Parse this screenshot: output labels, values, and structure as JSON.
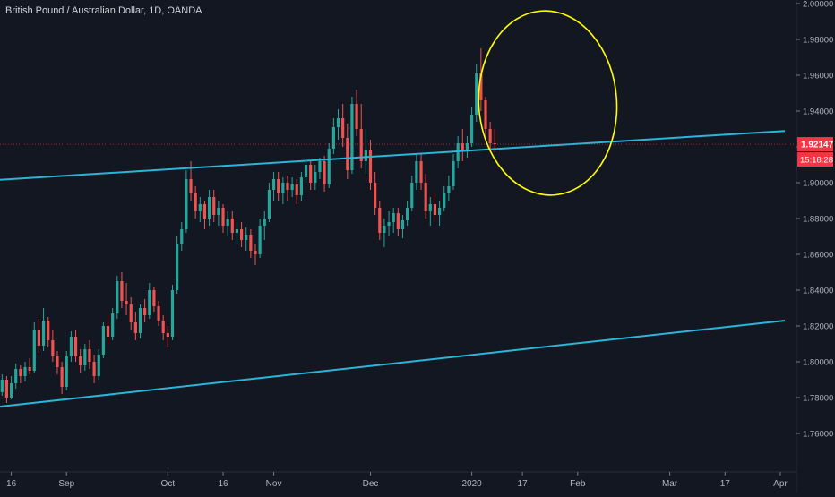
{
  "chart_data": {
    "type": "candlestick",
    "title": "British Pound / Australian Dollar, 1D, OANDA",
    "y_ticks": [
      "2.00000",
      "1.98000",
      "1.96000",
      "1.94000",
      "1.92000",
      "1.90000",
      "1.88000",
      "1.86000",
      "1.84000",
      "1.82000",
      "1.80000",
      "1.78000",
      "1.76000"
    ],
    "ylim": [
      1.75,
      2.0
    ],
    "x_ticks": [
      {
        "label": "16",
        "index": 4
      },
      {
        "label": "Sep",
        "index": 16
      },
      {
        "label": "Oct",
        "index": 38
      },
      {
        "label": "16",
        "index": 50
      },
      {
        "label": "Nov",
        "index": 61
      },
      {
        "label": "Dec",
        "index": 82
      },
      {
        "label": "2020",
        "index": 104
      },
      {
        "label": "17",
        "index": 115
      },
      {
        "label": "Feb",
        "index": 127
      },
      {
        "label": "Mar",
        "index": 147
      },
      {
        "label": "17",
        "index": 159
      },
      {
        "label": "Apr",
        "index": 171
      }
    ],
    "current_price": {
      "label": "1.92147",
      "value": 1.92147,
      "color": "#f23645"
    },
    "countdown": {
      "label": "15:18:28",
      "color": "#f23645"
    },
    "colors": {
      "up": "#26a69a",
      "down": "#ef5350",
      "channel": "#29b6d8",
      "annotation": "#ffff00",
      "background": "#131722",
      "text": "#b2b5be"
    },
    "channel_lines": [
      {
        "start_index": -1,
        "start_value": 1.9012,
        "end_index": 172,
        "end_value": 1.9289
      },
      {
        "start_index": -1,
        "start_value": 1.7743,
        "end_index": 172,
        "end_value": 1.823
      }
    ],
    "annotation_ellipse": {
      "center_index": 120.5,
      "center_value": 1.9445,
      "radius_bars": 30,
      "radius_value": 0.0515
    },
    "candles": [
      [
        1.782,
        1.786,
        1.774,
        1.779
      ],
      [
        1.779,
        1.787,
        1.776,
        1.783
      ],
      [
        1.783,
        1.793,
        1.781,
        1.79
      ],
      [
        1.79,
        1.792,
        1.777,
        1.78
      ],
      [
        1.78,
        1.792,
        1.779,
        1.788
      ],
      [
        1.788,
        1.799,
        1.785,
        1.796
      ],
      [
        1.796,
        1.798,
        1.788,
        1.792
      ],
      [
        1.792,
        1.8,
        1.789,
        1.797
      ],
      [
        1.797,
        1.802,
        1.793,
        1.795
      ],
      [
        1.795,
        1.822,
        1.794,
        1.818
      ],
      [
        1.818,
        1.824,
        1.805,
        1.809
      ],
      [
        1.809,
        1.83,
        1.806,
        1.823
      ],
      [
        1.823,
        1.825,
        1.808,
        1.812
      ],
      [
        1.812,
        1.818,
        1.8,
        1.803
      ],
      [
        1.803,
        1.806,
        1.793,
        1.797
      ],
      [
        1.797,
        1.8,
        1.782,
        1.786
      ],
      [
        1.786,
        1.806,
        1.784,
        1.803
      ],
      [
        1.803,
        1.817,
        1.8,
        1.814
      ],
      [
        1.814,
        1.818,
        1.8,
        1.803
      ],
      [
        1.803,
        1.807,
        1.794,
        1.798
      ],
      [
        1.798,
        1.81,
        1.795,
        1.807
      ],
      [
        1.807,
        1.812,
        1.796,
        1.8
      ],
      [
        1.8,
        1.804,
        1.788,
        1.792
      ],
      [
        1.792,
        1.807,
        1.79,
        1.804
      ],
      [
        1.804,
        1.822,
        1.802,
        1.82
      ],
      [
        1.82,
        1.826,
        1.81,
        1.814
      ],
      [
        1.814,
        1.83,
        1.812,
        1.827
      ],
      [
        1.827,
        1.848,
        1.824,
        1.845
      ],
      [
        1.845,
        1.85,
        1.83,
        1.834
      ],
      [
        1.834,
        1.844,
        1.826,
        1.832
      ],
      [
        1.832,
        1.836,
        1.818,
        1.822
      ],
      [
        1.822,
        1.828,
        1.812,
        1.816
      ],
      [
        1.816,
        1.832,
        1.813,
        1.83
      ],
      [
        1.83,
        1.835,
        1.822,
        1.826
      ],
      [
        1.826,
        1.844,
        1.824,
        1.84
      ],
      [
        1.84,
        1.842,
        1.828,
        1.831
      ],
      [
        1.831,
        1.834,
        1.82,
        1.823
      ],
      [
        1.823,
        1.826,
        1.812,
        1.816
      ],
      [
        1.816,
        1.82,
        1.808,
        1.814
      ],
      [
        1.814,
        1.843,
        1.812,
        1.84
      ],
      [
        1.84,
        1.87,
        1.838,
        1.866
      ],
      [
        1.866,
        1.878,
        1.862,
        1.874
      ],
      [
        1.874,
        1.907,
        1.872,
        1.902
      ],
      [
        1.902,
        1.912,
        1.89,
        1.894
      ],
      [
        1.894,
        1.898,
        1.88,
        1.884
      ],
      [
        1.884,
        1.892,
        1.878,
        1.888
      ],
      [
        1.888,
        1.89,
        1.874,
        1.88
      ],
      [
        1.88,
        1.896,
        1.876,
        1.892
      ],
      [
        1.892,
        1.896,
        1.878,
        1.882
      ],
      [
        1.882,
        1.89,
        1.876,
        1.886
      ],
      [
        1.886,
        1.888,
        1.872,
        1.876
      ],
      [
        1.876,
        1.884,
        1.87,
        1.88
      ],
      [
        1.88,
        1.884,
        1.868,
        1.872
      ],
      [
        1.872,
        1.878,
        1.866,
        1.874
      ],
      [
        1.874,
        1.878,
        1.864,
        1.868
      ],
      [
        1.868,
        1.875,
        1.862,
        1.871
      ],
      [
        1.871,
        1.874,
        1.858,
        1.862
      ],
      [
        1.862,
        1.866,
        1.854,
        1.86
      ],
      [
        1.86,
        1.88,
        1.858,
        1.876
      ],
      [
        1.876,
        1.884,
        1.868,
        1.88
      ],
      [
        1.88,
        1.9,
        1.878,
        1.896
      ],
      [
        1.896,
        1.906,
        1.89,
        1.902
      ],
      [
        1.902,
        1.906,
        1.89,
        1.894
      ],
      [
        1.894,
        1.903,
        1.888,
        1.9
      ],
      [
        1.9,
        1.904,
        1.89,
        1.896
      ],
      [
        1.896,
        1.903,
        1.892,
        1.899
      ],
      [
        1.899,
        1.902,
        1.888,
        1.893
      ],
      [
        1.893,
        1.906,
        1.89,
        1.903
      ],
      [
        1.903,
        1.914,
        1.9,
        1.91
      ],
      [
        1.91,
        1.912,
        1.896,
        1.9
      ],
      [
        1.9,
        1.91,
        1.896,
        1.906
      ],
      [
        1.906,
        1.914,
        1.902,
        1.912
      ],
      [
        1.912,
        1.915,
        1.895,
        1.899
      ],
      [
        1.899,
        1.922,
        1.897,
        1.919
      ],
      [
        1.919,
        1.936,
        1.916,
        1.931
      ],
      [
        1.931,
        1.941,
        1.924,
        1.936
      ],
      [
        1.936,
        1.944,
        1.92,
        1.925
      ],
      [
        1.925,
        1.933,
        1.902,
        1.907
      ],
      [
        1.907,
        1.948,
        1.905,
        1.944
      ],
      [
        1.944,
        1.952,
        1.926,
        1.93
      ],
      [
        1.93,
        1.944,
        1.908,
        1.912
      ],
      [
        1.912,
        1.93,
        1.905,
        1.918
      ],
      [
        1.918,
        1.924,
        1.896,
        1.9
      ],
      [
        1.9,
        1.906,
        1.882,
        1.886
      ],
      [
        1.886,
        1.89,
        1.868,
        1.872
      ],
      [
        1.872,
        1.88,
        1.864,
        1.876
      ],
      [
        1.876,
        1.884,
        1.87,
        1.878
      ],
      [
        1.878,
        1.886,
        1.872,
        1.883
      ],
      [
        1.883,
        1.886,
        1.87,
        1.874
      ],
      [
        1.874,
        1.882,
        1.869,
        1.879
      ],
      [
        1.879,
        1.89,
        1.876,
        1.886
      ],
      [
        1.886,
        1.904,
        1.884,
        1.9
      ],
      [
        1.9,
        1.916,
        1.896,
        1.912
      ],
      [
        1.912,
        1.916,
        1.896,
        1.9
      ],
      [
        1.9,
        1.905,
        1.88,
        1.884
      ],
      [
        1.884,
        1.892,
        1.876,
        1.888
      ],
      [
        1.888,
        1.894,
        1.878,
        1.882
      ],
      [
        1.882,
        1.89,
        1.876,
        1.886
      ],
      [
        1.886,
        1.898,
        1.884,
        1.894
      ],
      [
        1.894,
        1.904,
        1.89,
        1.898
      ],
      [
        1.898,
        1.916,
        1.896,
        1.912
      ],
      [
        1.912,
        1.926,
        1.908,
        1.922
      ],
      [
        1.922,
        1.93,
        1.912,
        1.918
      ],
      [
        1.918,
        1.926,
        1.914,
        1.922
      ],
      [
        1.922,
        1.942,
        1.92,
        1.938
      ],
      [
        1.938,
        1.966,
        1.934,
        1.961
      ],
      [
        1.961,
        1.975,
        1.94,
        1.946
      ],
      [
        1.946,
        1.948,
        1.926,
        1.93
      ],
      [
        1.93,
        1.934,
        1.918,
        1.922
      ],
      [
        1.922,
        1.93,
        1.917,
        1.92147
      ]
    ]
  }
}
